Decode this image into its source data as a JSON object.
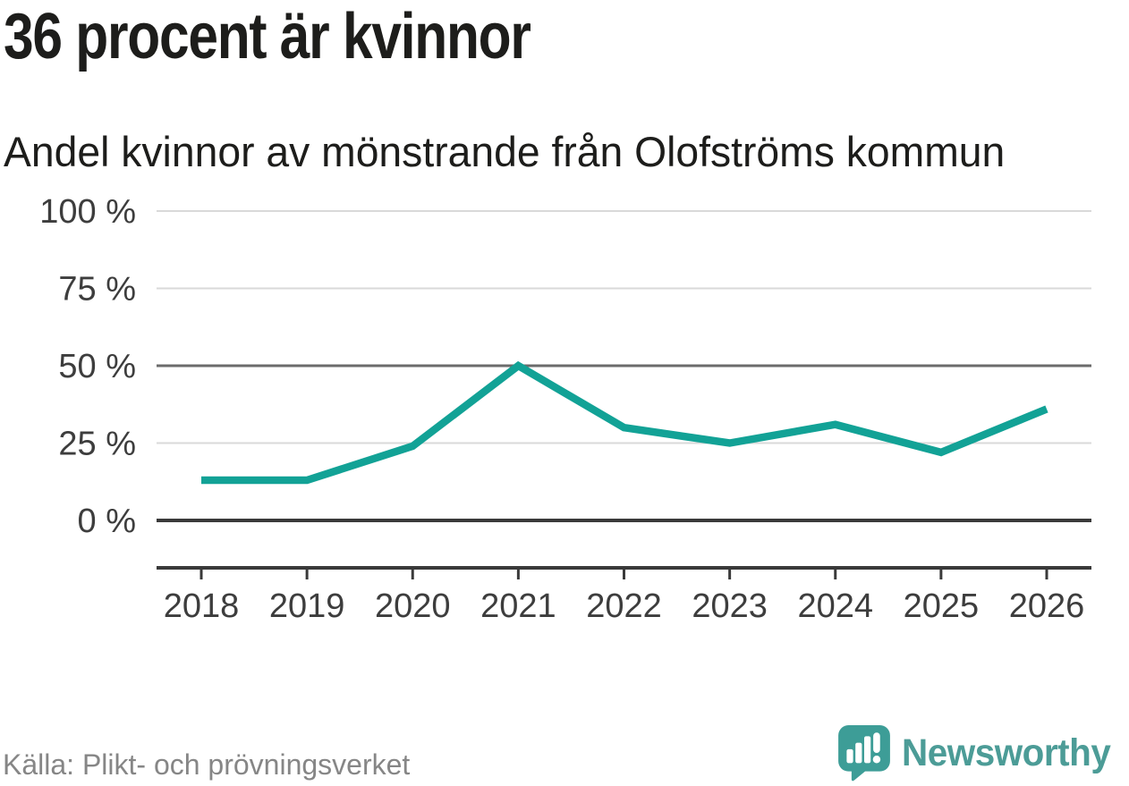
{
  "chart_data": {
    "type": "line",
    "title": "36 procent är kvinnor",
    "subtitle": "Andel kvinnor av mönstrande från Olofströms kommun",
    "categories": [
      "2018",
      "2019",
      "2020",
      "2021",
      "2022",
      "2023",
      "2024",
      "2025",
      "2026"
    ],
    "series": [
      {
        "name": "Andel kvinnor av mönstrande",
        "values": [
          13,
          13,
          24,
          50,
          30,
          25,
          31,
          22,
          36
        ]
      }
    ],
    "xlabel": "",
    "ylabel": "",
    "unit": "%",
    "ylim": [
      0,
      100
    ],
    "yticks": [
      0,
      25,
      50,
      75,
      100
    ],
    "ytick_labels": [
      "0 %",
      "25 %",
      "50 %",
      "75 %",
      "100 %"
    ],
    "grid": true,
    "legend": false,
    "legend_position": "none",
    "line_color": "#12a296"
  },
  "footer": {
    "source": "Källa: Plikt- och prövningsverket",
    "brand": "Newsworthy"
  },
  "icons": {
    "logo": "newsworthy-speech-bubble-chart-icon"
  },
  "colors": {
    "accent": "#12a296",
    "brand_teal": "#4c9c97",
    "logo_bubble": "#3d9d97",
    "text": "#1d1d1b",
    "axis_text": "#3d3d3d",
    "grid_light": "#d9d9d9",
    "grid_strong": "#6b6b6b",
    "axis_dark": "#3a3a3a",
    "muted": "#868686"
  }
}
